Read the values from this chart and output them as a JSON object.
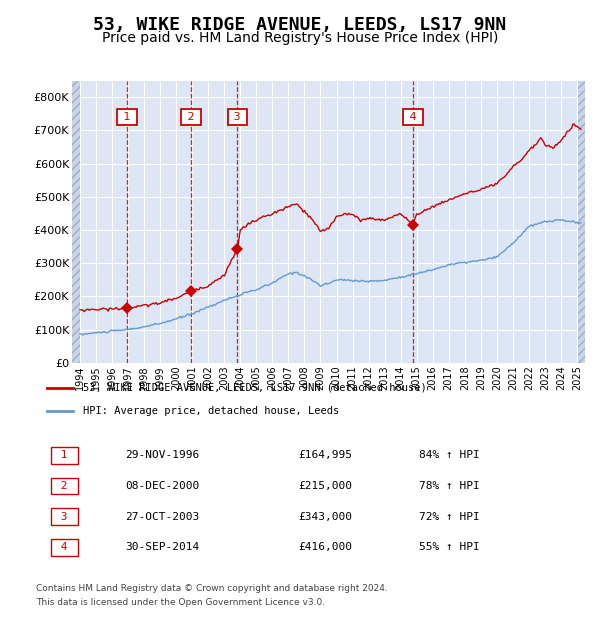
{
  "title": "53, WIKE RIDGE AVENUE, LEEDS, LS17 9NN",
  "subtitle": "Price paid vs. HM Land Registry's House Price Index (HPI)",
  "title_fontsize": 13,
  "subtitle_fontsize": 10,
  "red_line_label": "53, WIKE RIDGE AVENUE, LEEDS, LS17 9NN (detached house)",
  "blue_line_label": "HPI: Average price, detached house, Leeds",
  "footer_line1": "Contains HM Land Registry data © Crown copyright and database right 2024.",
  "footer_line2": "This data is licensed under the Open Government Licence v3.0.",
  "transactions": [
    {
      "num": 1,
      "date": "29-NOV-1996",
      "price": "£164,995",
      "pct": "84% ↑ HPI",
      "year_x": 1996.92,
      "price_val": 164995
    },
    {
      "num": 2,
      "date": "08-DEC-2000",
      "price": "£215,000",
      "pct": "78% ↑ HPI",
      "year_x": 2000.94,
      "price_val": 215000
    },
    {
      "num": 3,
      "date": "27-OCT-2003",
      "price": "£343,000",
      "pct": "72% ↑ HPI",
      "year_x": 2003.82,
      "price_val": 343000
    },
    {
      "num": 4,
      "date": "30-SEP-2014",
      "price": "£416,000",
      "pct": "55% ↑ HPI",
      "year_x": 2014.75,
      "price_val": 416000
    }
  ],
  "vline_years": [
    1996.92,
    2000.94,
    2003.82,
    2014.75
  ],
  "xlim": [
    1993.5,
    2025.5
  ],
  "ylim": [
    0,
    850000
  ],
  "yticks": [
    0,
    100000,
    200000,
    300000,
    400000,
    500000,
    600000,
    700000,
    800000
  ],
  "ytick_labels": [
    "£0",
    "£100K",
    "£200K",
    "£300K",
    "£400K",
    "£500K",
    "£600K",
    "£700K",
    "£800K"
  ],
  "xtick_years": [
    1994,
    1995,
    1996,
    1997,
    1998,
    1999,
    2000,
    2001,
    2002,
    2003,
    2004,
    2005,
    2006,
    2007,
    2008,
    2009,
    2010,
    2011,
    2012,
    2013,
    2014,
    2015,
    2016,
    2017,
    2018,
    2019,
    2020,
    2021,
    2022,
    2023,
    2024,
    2025
  ],
  "bg_color": "#dce6f5",
  "red_color": "#cc0000",
  "blue_color": "#6699cc",
  "grid_color": "#ffffff",
  "vline_color": "#cc0000",
  "blue_keypoints": [
    [
      1994.0,
      85000
    ],
    [
      1995.0,
      90000
    ],
    [
      1996.0,
      95000
    ],
    [
      1997.0,
      100000
    ],
    [
      1998.0,
      108000
    ],
    [
      1999.0,
      118000
    ],
    [
      2000.0,
      132000
    ],
    [
      2001.0,
      148000
    ],
    [
      2002.0,
      168000
    ],
    [
      2003.0,
      188000
    ],
    [
      2004.0,
      205000
    ],
    [
      2005.0,
      220000
    ],
    [
      2006.0,
      240000
    ],
    [
      2007.0,
      268000
    ],
    [
      2007.5,
      272000
    ],
    [
      2008.0,
      262000
    ],
    [
      2008.5,
      248000
    ],
    [
      2009.0,
      232000
    ],
    [
      2009.5,
      238000
    ],
    [
      2010.0,
      250000
    ],
    [
      2011.0,
      248000
    ],
    [
      2012.0,
      245000
    ],
    [
      2013.0,
      248000
    ],
    [
      2014.0,
      258000
    ],
    [
      2015.0,
      268000
    ],
    [
      2016.0,
      280000
    ],
    [
      2017.0,
      295000
    ],
    [
      2018.0,
      302000
    ],
    [
      2019.0,
      308000
    ],
    [
      2020.0,
      318000
    ],
    [
      2021.0,
      360000
    ],
    [
      2022.0,
      410000
    ],
    [
      2023.0,
      425000
    ],
    [
      2024.0,
      430000
    ],
    [
      2025.3,
      420000
    ]
  ],
  "red_keypoints": [
    [
      1994.0,
      158000
    ],
    [
      1995.0,
      161000
    ],
    [
      1996.0,
      162000
    ],
    [
      1996.92,
      165000
    ],
    [
      1997.5,
      168000
    ],
    [
      1998.0,
      172000
    ],
    [
      1999.0,
      180000
    ],
    [
      2000.0,
      195000
    ],
    [
      2000.94,
      215000
    ],
    [
      2001.5,
      225000
    ],
    [
      2002.0,
      232000
    ],
    [
      2002.5,
      248000
    ],
    [
      2003.0,
      265000
    ],
    [
      2003.82,
      343000
    ],
    [
      2004.0,
      400000
    ],
    [
      2004.5,
      418000
    ],
    [
      2005.0,
      430000
    ],
    [
      2005.5,
      440000
    ],
    [
      2006.0,
      448000
    ],
    [
      2007.0,
      470000
    ],
    [
      2007.5,
      478000
    ],
    [
      2008.0,
      455000
    ],
    [
      2008.5,
      430000
    ],
    [
      2009.0,
      395000
    ],
    [
      2009.5,
      405000
    ],
    [
      2010.0,
      440000
    ],
    [
      2010.5,
      450000
    ],
    [
      2011.0,
      445000
    ],
    [
      2011.5,
      430000
    ],
    [
      2012.0,
      435000
    ],
    [
      2013.0,
      430000
    ],
    [
      2013.5,
      440000
    ],
    [
      2014.0,
      450000
    ],
    [
      2014.75,
      416000
    ],
    [
      2015.0,
      445000
    ],
    [
      2015.5,
      460000
    ],
    [
      2016.0,
      470000
    ],
    [
      2016.5,
      480000
    ],
    [
      2017.0,
      490000
    ],
    [
      2017.5,
      500000
    ],
    [
      2018.0,
      510000
    ],
    [
      2018.5,
      515000
    ],
    [
      2019.0,
      520000
    ],
    [
      2019.5,
      530000
    ],
    [
      2020.0,
      540000
    ],
    [
      2020.5,
      560000
    ],
    [
      2021.0,
      590000
    ],
    [
      2021.5,
      610000
    ],
    [
      2022.0,
      640000
    ],
    [
      2022.5,
      660000
    ],
    [
      2022.8,
      680000
    ],
    [
      2023.0,
      655000
    ],
    [
      2023.5,
      648000
    ],
    [
      2023.8,
      660000
    ],
    [
      2024.0,
      670000
    ],
    [
      2024.5,
      700000
    ],
    [
      2024.8,
      720000
    ],
    [
      2025.0,
      710000
    ],
    [
      2025.3,
      700000
    ]
  ]
}
